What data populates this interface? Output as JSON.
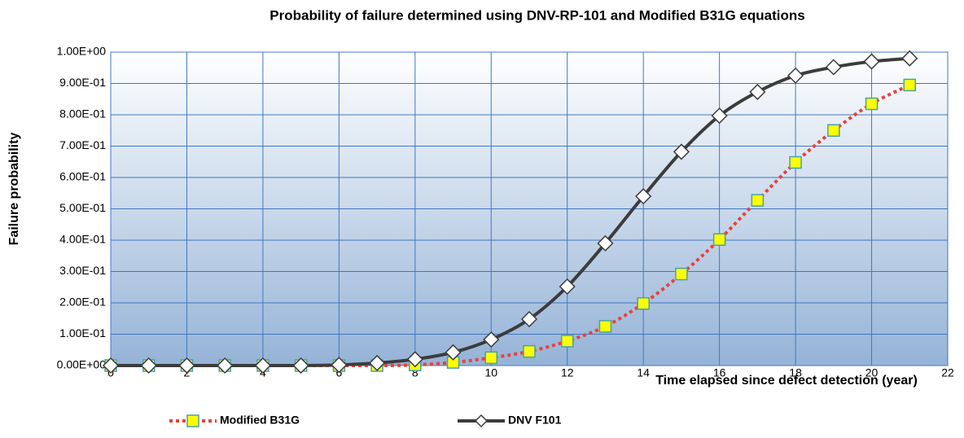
{
  "chart_data": {
    "type": "line",
    "title": "Probability of failure determined using DNV-RP-101 and Modified B31G equations",
    "x_label": "Time elapsed since defect detection (year)",
    "y_label": "Failure probability",
    "x": [
      0,
      1,
      2,
      3,
      4,
      5,
      6,
      7,
      8,
      9,
      10,
      11,
      12,
      13,
      14,
      15,
      16,
      17,
      18,
      19,
      20,
      21
    ],
    "series": [
      {
        "name": "Modified B31G",
        "color": "#e8413c",
        "marker_color": "#ffff00",
        "values": [
          0,
          0,
          0,
          0,
          0,
          0,
          0,
          0,
          0.002,
          0.01,
          0.025,
          0.045,
          0.078,
          0.125,
          0.198,
          0.292,
          0.402,
          0.527,
          0.648,
          0.75,
          0.835,
          0.895
        ]
      },
      {
        "name": "DNV F101",
        "color": "#3c3c3c",
        "marker_color": "#ffffff",
        "values": [
          0,
          0,
          0,
          0,
          0,
          0,
          0.002,
          0.008,
          0.02,
          0.042,
          0.083,
          0.148,
          0.252,
          0.39,
          0.54,
          0.682,
          0.797,
          0.873,
          0.925,
          0.952,
          0.97,
          0.98
        ]
      }
    ],
    "xlim": [
      0,
      22
    ],
    "xticks": [
      0,
      2,
      4,
      6,
      8,
      10,
      12,
      14,
      16,
      18,
      20,
      22
    ],
    "ylim": [
      0,
      1
    ],
    "yticks": [
      {
        "value": 0,
        "label": "0.00E+00"
      },
      {
        "value": 0.1,
        "label": "1.00E-01"
      },
      {
        "value": 0.2,
        "label": "2.00E-01"
      },
      {
        "value": 0.3,
        "label": "3.00E-01"
      },
      {
        "value": 0.4,
        "label": "4.00E-01"
      },
      {
        "value": 0.5,
        "label": "5.00E-01"
      },
      {
        "value": 0.6,
        "label": "6.00E-01"
      },
      {
        "value": 0.7,
        "label": "7.00E-01"
      },
      {
        "value": 0.8,
        "label": "8.00E-01"
      },
      {
        "value": 0.9,
        "label": "9.00E-01"
      },
      {
        "value": 1,
        "label": "1.00E+00"
      }
    ],
    "grid": true
  }
}
